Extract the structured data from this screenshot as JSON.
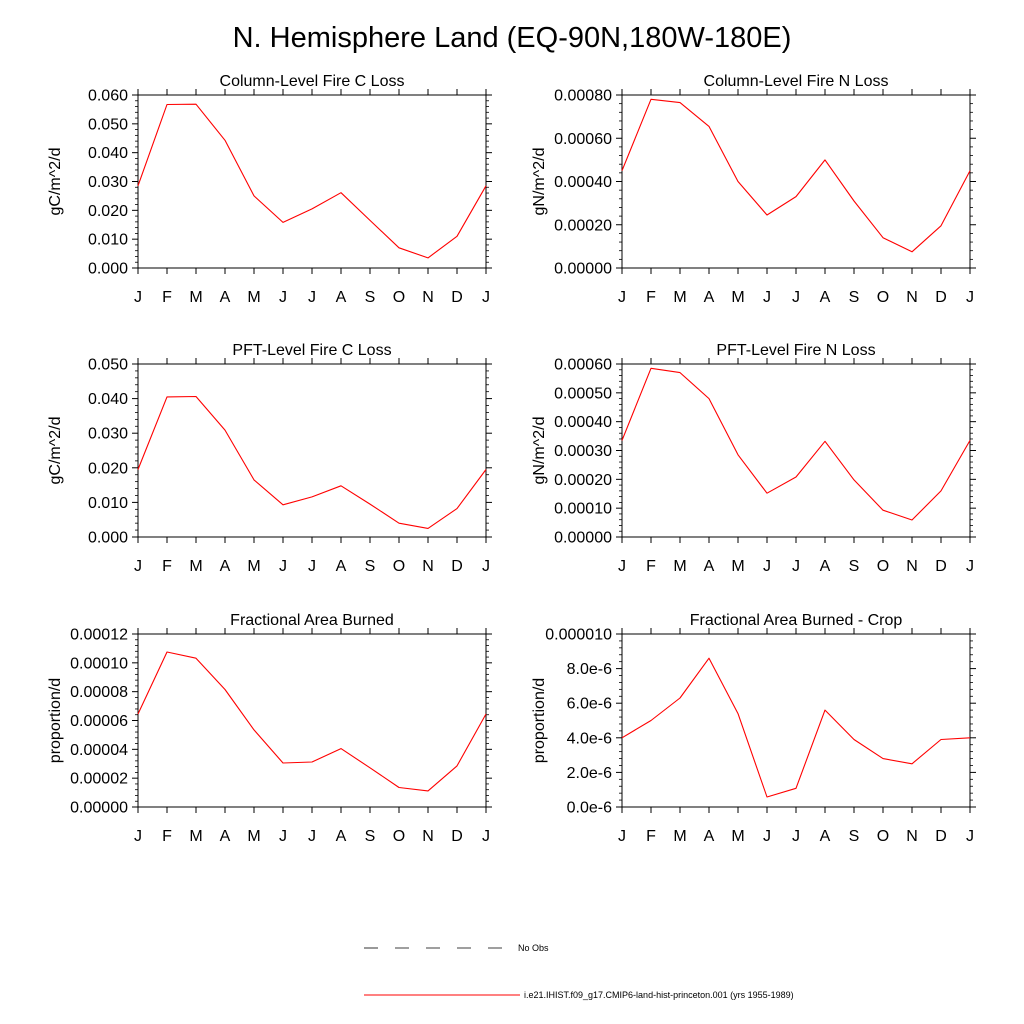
{
  "title": "N. Hemisphere Land (EQ-90N,180W-180E)",
  "colors": {
    "series": "#ff0000",
    "axes": "#000000",
    "obs": "#000000"
  },
  "legend": {
    "obs_label": "No Obs",
    "model_label": "i.e21.IHIST.f09_g17.CMIP6-land-hist-princeton.001 (yrs 1955-1989)"
  },
  "chart_data": [
    {
      "type": "line",
      "title": "Column-Level Fire C Loss",
      "ylabel": "gC/m^2/d",
      "categories": [
        "J",
        "F",
        "M",
        "A",
        "M",
        "J",
        "J",
        "A",
        "S",
        "O",
        "N",
        "D",
        "J"
      ],
      "ylim": [
        0,
        0.06
      ],
      "yticks": [
        0,
        0.01,
        0.02,
        0.03,
        0.04,
        0.05,
        0.06
      ],
      "ytick_labels": [
        "0.000",
        "0.010",
        "0.020",
        "0.030",
        "0.040",
        "0.050",
        "0.060"
      ],
      "series": [
        {
          "values": [
            0.0285,
            0.0567,
            0.0568,
            0.0443,
            0.025,
            0.0158,
            0.0205,
            0.0261,
            0.0165,
            0.007,
            0.0035,
            0.011,
            0.0285
          ]
        }
      ]
    },
    {
      "type": "line",
      "title": "Column-Level Fire N Loss",
      "ylabel": "gN/m^2/d",
      "categories": [
        "J",
        "F",
        "M",
        "A",
        "M",
        "J",
        "J",
        "A",
        "S",
        "O",
        "N",
        "D",
        "J"
      ],
      "ylim": [
        0,
        0.0008
      ],
      "yticks": [
        0,
        0.0002,
        0.0004,
        0.0006,
        0.0008
      ],
      "ytick_labels": [
        "0.00000",
        "0.00020",
        "0.00040",
        "0.00060",
        "0.00080"
      ],
      "series": [
        {
          "values": [
            0.00045,
            0.00078,
            0.000765,
            0.000655,
            0.0004,
            0.000245,
            0.00033,
            0.0005,
            0.00031,
            0.00014,
            7.5e-05,
            0.000195,
            0.00045
          ]
        }
      ]
    },
    {
      "type": "line",
      "title": "PFT-Level Fire C Loss",
      "ylabel": "gC/m^2/d",
      "categories": [
        "J",
        "F",
        "M",
        "A",
        "M",
        "J",
        "J",
        "A",
        "S",
        "O",
        "N",
        "D",
        "J"
      ],
      "ylim": [
        0,
        0.05
      ],
      "yticks": [
        0,
        0.01,
        0.02,
        0.03,
        0.04,
        0.05
      ],
      "ytick_labels": [
        "0.000",
        "0.010",
        "0.020",
        "0.030",
        "0.040",
        "0.050"
      ],
      "series": [
        {
          "values": [
            0.0195,
            0.0405,
            0.0406,
            0.0309,
            0.0165,
            0.0093,
            0.0116,
            0.0148,
            0.0095,
            0.004,
            0.0025,
            0.0082,
            0.0195
          ]
        }
      ]
    },
    {
      "type": "line",
      "title": "PFT-Level Fire N Loss",
      "ylabel": "gN/m^2/d",
      "categories": [
        "J",
        "F",
        "M",
        "A",
        "M",
        "J",
        "J",
        "A",
        "S",
        "O",
        "N",
        "D",
        "J"
      ],
      "ylim": [
        0,
        0.0006
      ],
      "yticks": [
        0,
        0.0001,
        0.0002,
        0.0003,
        0.0004,
        0.0005,
        0.0006
      ],
      "ytick_labels": [
        "0.00000",
        "0.00010",
        "0.00020",
        "0.00030",
        "0.00040",
        "0.00050",
        "0.00060"
      ],
      "series": [
        {
          "values": [
            0.000335,
            0.000585,
            0.00057,
            0.00048,
            0.000285,
            0.000152,
            0.000208,
            0.000332,
            0.000198,
            9.3e-05,
            5.9e-05,
            0.00016,
            0.000335
          ]
        }
      ]
    },
    {
      "type": "line",
      "title": "Fractional Area Burned",
      "ylabel": "proportion/d",
      "categories": [
        "J",
        "F",
        "M",
        "A",
        "M",
        "J",
        "J",
        "A",
        "S",
        "O",
        "N",
        "D",
        "J"
      ],
      "ylim": [
        0,
        0.00012
      ],
      "yticks": [
        0,
        2e-05,
        4e-05,
        6e-05,
        8e-05,
        0.0001,
        0.00012
      ],
      "ytick_labels": [
        "0.00000",
        "0.00002",
        "0.00004",
        "0.00006",
        "0.00008",
        "0.00010",
        "0.00012"
      ],
      "series": [
        {
          "values": [
            6.45e-05,
            0.0001075,
            0.0001032,
            8.15e-05,
            5.35e-05,
            3.05e-05,
            3.12e-05,
            4.05e-05,
            2.72e-05,
            1.35e-05,
            1.12e-05,
            2.85e-05,
            6.45e-05
          ]
        }
      ]
    },
    {
      "type": "line",
      "title": "Fractional Area Burned - Crop",
      "ylabel": "proportion/d",
      "categories": [
        "J",
        "F",
        "M",
        "A",
        "M",
        "J",
        "J",
        "A",
        "S",
        "O",
        "N",
        "D",
        "J"
      ],
      "ylim": [
        0,
        1e-05
      ],
      "yticks": [
        0,
        2e-06,
        4e-06,
        6e-06,
        8e-06,
        1e-05
      ],
      "ytick_labels": [
        "0.0e-6",
        "2.0e-6",
        "4.0e-6",
        "6.0e-6",
        "8.0e-6",
        "0.000010"
      ],
      "series": [
        {
          "values": [
            4e-06,
            5e-06,
            6.3e-06,
            8.6e-06,
            5.4e-06,
            5.8e-07,
            1.08e-06,
            5.6e-06,
            3.9e-06,
            2.8e-06,
            2.5e-06,
            3.9e-06,
            4e-06
          ]
        }
      ]
    }
  ]
}
